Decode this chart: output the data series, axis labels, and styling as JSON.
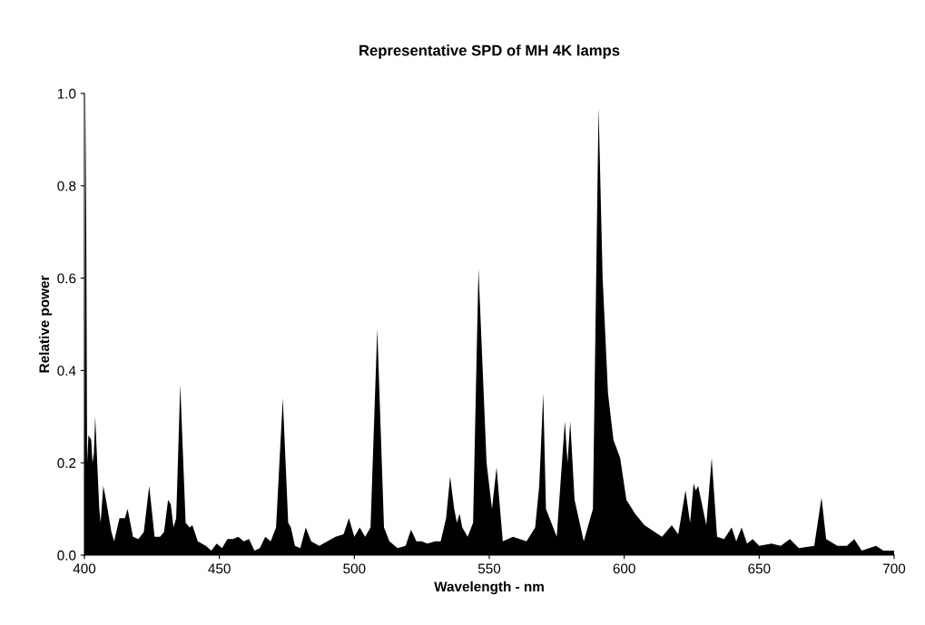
{
  "chart_data": {
    "type": "area",
    "title": "Representative SPD of MH 4K lamps",
    "xlabel": "Wavelength - nm",
    "ylabel": "Relative power",
    "x": [
      400,
      400.5,
      401,
      401.5,
      402.5,
      403,
      403.5,
      404,
      405.5,
      406,
      407,
      408,
      410,
      411,
      413,
      415,
      416,
      418,
      420,
      422,
      424,
      426,
      428,
      429.5,
      431,
      432,
      433,
      434,
      435.5,
      437.5,
      439,
      440,
      442,
      445,
      447,
      449,
      451,
      453,
      455,
      457,
      459,
      461,
      463,
      465,
      467,
      469,
      471,
      473.5,
      475.5,
      476.5,
      478,
      480,
      482,
      484,
      487,
      490,
      493,
      496,
      498,
      500,
      502,
      504,
      506,
      508.5,
      511,
      513,
      516,
      519,
      521,
      523,
      525,
      527,
      530,
      532,
      534,
      535.5,
      537,
      538,
      539,
      540,
      542,
      544,
      546,
      549,
      551,
      552.7,
      555,
      558.8,
      563.8,
      567,
      568.5,
      570,
      571,
      575,
      578,
      579,
      580,
      581.6,
      585,
      588.4,
      590.5,
      592,
      594,
      596,
      598.5,
      600.8,
      604,
      607.5,
      614,
      617.6,
      620,
      622.7,
      624.4,
      625.7,
      626.5,
      627.4,
      630.4,
      632.4,
      634.4,
      637,
      639.8,
      641.5,
      643.5,
      645.5,
      647.6,
      650,
      654.6,
      658,
      661.4,
      664.7,
      670.4,
      673.1,
      674.8,
      679,
      682.5,
      685.2,
      688,
      693.3,
      696,
      700
    ],
    "series": [
      {
        "color": "#000000",
        "values": [
          0.16,
          1.0,
          0.2,
          0.26,
          0.25,
          0.2,
          0.22,
          0.3,
          0.1,
          0.07,
          0.15,
          0.12,
          0.05,
          0.03,
          0.08,
          0.08,
          0.1,
          0.04,
          0.035,
          0.05,
          0.15,
          0.04,
          0.04,
          0.05,
          0.12,
          0.11,
          0.06,
          0.08,
          0.37,
          0.07,
          0.06,
          0.065,
          0.03,
          0.02,
          0.01,
          0.025,
          0.015,
          0.035,
          0.035,
          0.04,
          0.03,
          0.035,
          0.01,
          0.015,
          0.04,
          0.03,
          0.06,
          0.34,
          0.07,
          0.06,
          0.02,
          0.015,
          0.06,
          0.03,
          0.02,
          0.03,
          0.04,
          0.045,
          0.08,
          0.04,
          0.06,
          0.04,
          0.06,
          0.49,
          0.06,
          0.03,
          0.015,
          0.02,
          0.055,
          0.03,
          0.03,
          0.025,
          0.03,
          0.03,
          0.08,
          0.17,
          0.1,
          0.07,
          0.09,
          0.06,
          0.04,
          0.07,
          0.62,
          0.2,
          0.1,
          0.19,
          0.03,
          0.04,
          0.03,
          0.06,
          0.15,
          0.35,
          0.1,
          0.04,
          0.29,
          0.2,
          0.29,
          0.12,
          0.03,
          0.1,
          0.97,
          0.6,
          0.35,
          0.25,
          0.21,
          0.12,
          0.09,
          0.065,
          0.04,
          0.065,
          0.045,
          0.14,
          0.07,
          0.155,
          0.14,
          0.15,
          0.065,
          0.21,
          0.04,
          0.035,
          0.06,
          0.03,
          0.06,
          0.025,
          0.035,
          0.02,
          0.025,
          0.02,
          0.035,
          0.015,
          0.02,
          0.125,
          0.035,
          0.02,
          0.02,
          0.035,
          0.01,
          0.02,
          0.01,
          0.01
        ]
      }
    ],
    "xlim": [
      400,
      700
    ],
    "xticks": [
      400,
      450,
      500,
      550,
      600,
      650,
      700
    ],
    "ylim": [
      0,
      1
    ],
    "yticks": [
      {
        "value": 0,
        "label": "0.0"
      },
      {
        "value": 0.2,
        "label": "0.2"
      },
      {
        "value": 0.4,
        "label": "0.4"
      },
      {
        "value": 0.6,
        "label": "0.6"
      },
      {
        "value": 0.8,
        "label": "0.8"
      },
      {
        "value": 1,
        "label": "1.0"
      }
    ],
    "grid": false,
    "legend": false
  }
}
